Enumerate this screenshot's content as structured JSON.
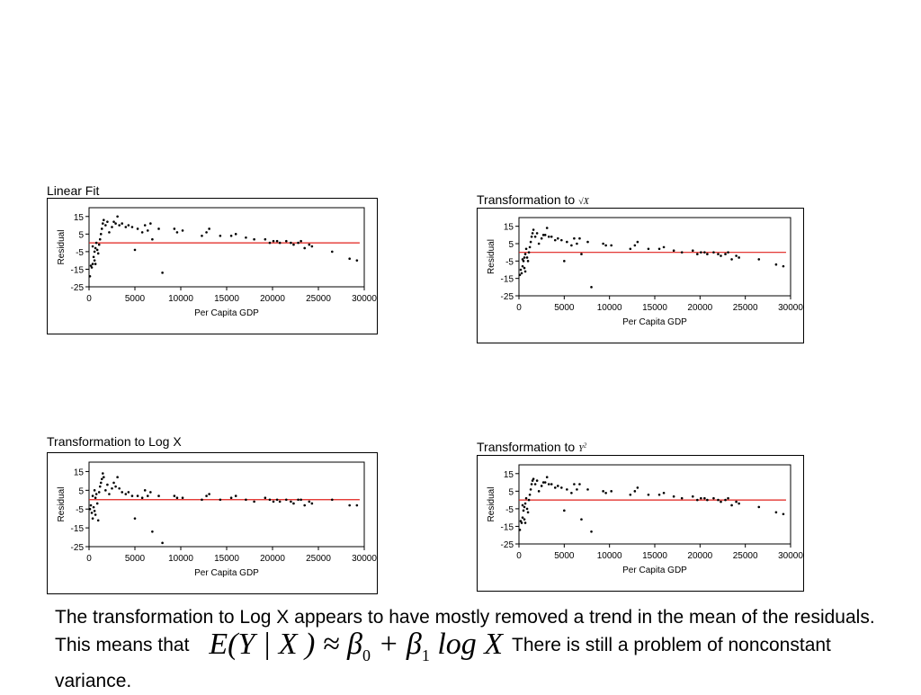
{
  "charts": [
    {
      "title": "Linear Fit",
      "symbol": "",
      "sup": ""
    },
    {
      "title": "Transformation to",
      "symbol": "√X",
      "sup": ""
    },
    {
      "title": "Transformation to Log X",
      "symbol": "",
      "sup": ""
    },
    {
      "title": "Transformation to",
      "symbol": "Y",
      "sup": "2"
    }
  ],
  "caption": {
    "text_before": "The transformation to Log X appears to have mostly removed a trend in the mean of the residuals.  This means that",
    "equation_lhs": "E(Y | X ) ≈ β",
    "eq_sub0": "0",
    "eq_mid": " + β",
    "eq_sub1": "1",
    "eq_rhs": " log X",
    "text_after": "There is still a problem of nonconstant variance."
  },
  "chart_data": [
    {
      "type": "scatter",
      "title": "Linear Fit",
      "xlabel": "Per Capita GDP",
      "ylabel": "Residual",
      "xlim": [
        0,
        30000
      ],
      "ylim": [
        -25,
        20
      ],
      "xticks": [
        0,
        5000,
        10000,
        15000,
        20000,
        25000,
        30000
      ],
      "yticks": [
        15,
        5,
        -5,
        -15,
        -25
      ],
      "reference_line": 0,
      "points": [
        [
          100,
          -19
        ],
        [
          200,
          -13
        ],
        [
          300,
          -14
        ],
        [
          400,
          -12
        ],
        [
          500,
          -8
        ],
        [
          600,
          -5
        ],
        [
          700,
          -3
        ],
        [
          800,
          0
        ],
        [
          400,
          -2
        ],
        [
          600,
          -10
        ],
        [
          700,
          -12
        ],
        [
          900,
          -4
        ],
        [
          1000,
          -6
        ],
        [
          1100,
          -1
        ],
        [
          1200,
          2
        ],
        [
          1300,
          5
        ],
        [
          1400,
          8
        ],
        [
          1500,
          11
        ],
        [
          1600,
          13
        ],
        [
          1800,
          10
        ],
        [
          2000,
          12
        ],
        [
          2200,
          6
        ],
        [
          2500,
          9
        ],
        [
          2700,
          12
        ],
        [
          2900,
          11
        ],
        [
          3100,
          15
        ],
        [
          3300,
          10
        ],
        [
          3600,
          11
        ],
        [
          4000,
          9
        ],
        [
          4300,
          10
        ],
        [
          4700,
          9
        ],
        [
          5000,
          -4
        ],
        [
          5300,
          8
        ],
        [
          5800,
          6
        ],
        [
          6100,
          10
        ],
        [
          6400,
          7
        ],
        [
          6700,
          11
        ],
        [
          6900,
          2
        ],
        [
          7600,
          8
        ],
        [
          8000,
          -17
        ],
        [
          9300,
          8
        ],
        [
          9600,
          6
        ],
        [
          10200,
          7
        ],
        [
          12300,
          4
        ],
        [
          12800,
          6
        ],
        [
          13100,
          8
        ],
        [
          14300,
          4
        ],
        [
          15500,
          4
        ],
        [
          16000,
          5
        ],
        [
          17100,
          3
        ],
        [
          18000,
          2
        ],
        [
          19200,
          2
        ],
        [
          19700,
          0
        ],
        [
          20100,
          1
        ],
        [
          20500,
          1
        ],
        [
          20800,
          0
        ],
        [
          21500,
          1
        ],
        [
          22000,
          0
        ],
        [
          22300,
          -1
        ],
        [
          22800,
          0
        ],
        [
          23100,
          1
        ],
        [
          23500,
          -3
        ],
        [
          24000,
          -1
        ],
        [
          24300,
          -2
        ],
        [
          26500,
          -5
        ],
        [
          28400,
          -9
        ],
        [
          29200,
          -10
        ]
      ]
    },
    {
      "type": "scatter",
      "title": "Transformation to √X",
      "xlabel": "Per Capita GDP",
      "ylabel": "Residual",
      "xlim": [
        0,
        30000
      ],
      "ylim": [
        -25,
        20
      ],
      "xticks": [
        0,
        5000,
        10000,
        15000,
        20000,
        25000,
        30000
      ],
      "yticks": [
        15,
        5,
        -5,
        -15,
        -25
      ],
      "reference_line": 0,
      "points": [
        [
          100,
          -13
        ],
        [
          200,
          -10
        ],
        [
          300,
          -12
        ],
        [
          400,
          -8
        ],
        [
          500,
          -5
        ],
        [
          600,
          -3
        ],
        [
          700,
          -1
        ],
        [
          800,
          2
        ],
        [
          400,
          -4
        ],
        [
          600,
          -9
        ],
        [
          700,
          -11
        ],
        [
          900,
          -3
        ],
        [
          1000,
          -5
        ],
        [
          1100,
          0
        ],
        [
          1200,
          3
        ],
        [
          1300,
          6
        ],
        [
          1400,
          9
        ],
        [
          1500,
          11
        ],
        [
          1600,
          13
        ],
        [
          1800,
          9
        ],
        [
          2000,
          11
        ],
        [
          2200,
          5
        ],
        [
          2500,
          8
        ],
        [
          2700,
          10
        ],
        [
          2900,
          10
        ],
        [
          3100,
          14
        ],
        [
          3300,
          9
        ],
        [
          3600,
          9
        ],
        [
          4000,
          7
        ],
        [
          4300,
          8
        ],
        [
          4700,
          7
        ],
        [
          5000,
          -5
        ],
        [
          5300,
          6
        ],
        [
          5800,
          4
        ],
        [
          6100,
          8
        ],
        [
          6400,
          5
        ],
        [
          6700,
          8
        ],
        [
          6900,
          -1
        ],
        [
          7600,
          6
        ],
        [
          8000,
          -20
        ],
        [
          9300,
          5
        ],
        [
          9600,
          4
        ],
        [
          10200,
          4
        ],
        [
          12300,
          2
        ],
        [
          12800,
          4
        ],
        [
          13100,
          6
        ],
        [
          14300,
          2
        ],
        [
          15500,
          2
        ],
        [
          16000,
          3
        ],
        [
          17100,
          1
        ],
        [
          18000,
          0
        ],
        [
          19200,
          1
        ],
        [
          19700,
          -1
        ],
        [
          20100,
          0
        ],
        [
          20500,
          0
        ],
        [
          20800,
          -1
        ],
        [
          21500,
          0
        ],
        [
          22000,
          -1
        ],
        [
          22300,
          -2
        ],
        [
          22800,
          -1
        ],
        [
          23100,
          0
        ],
        [
          23500,
          -4
        ],
        [
          24000,
          -2
        ],
        [
          24300,
          -3
        ],
        [
          26500,
          -4
        ],
        [
          28400,
          -7
        ],
        [
          29200,
          -8
        ]
      ]
    },
    {
      "type": "scatter",
      "title": "Transformation to Log X",
      "xlabel": "Per Capita GDP",
      "ylabel": "Residual",
      "xlim": [
        0,
        30000
      ],
      "ylim": [
        -25,
        20
      ],
      "xticks": [
        0,
        5000,
        10000,
        15000,
        20000,
        25000,
        30000
      ],
      "yticks": [
        15,
        5,
        -5,
        -15,
        -25
      ],
      "reference_line": 0,
      "points": [
        [
          100,
          -5
        ],
        [
          200,
          -3
        ],
        [
          300,
          -7
        ],
        [
          400,
          2
        ],
        [
          500,
          -4
        ],
        [
          600,
          5
        ],
        [
          700,
          -8
        ],
        [
          800,
          3
        ],
        [
          400,
          -10
        ],
        [
          600,
          -6
        ],
        [
          700,
          1
        ],
        [
          900,
          -2
        ],
        [
          1000,
          -11
        ],
        [
          1100,
          4
        ],
        [
          1200,
          7
        ],
        [
          1300,
          9
        ],
        [
          1400,
          11
        ],
        [
          1500,
          14
        ],
        [
          1600,
          12
        ],
        [
          1800,
          5
        ],
        [
          2000,
          8
        ],
        [
          2200,
          3
        ],
        [
          2500,
          6
        ],
        [
          2700,
          9
        ],
        [
          2900,
          7
        ],
        [
          3100,
          12
        ],
        [
          3300,
          6
        ],
        [
          3600,
          4
        ],
        [
          4000,
          3
        ],
        [
          4300,
          4
        ],
        [
          4700,
          2
        ],
        [
          5000,
          -10
        ],
        [
          5300,
          2
        ],
        [
          5800,
          1
        ],
        [
          6100,
          5
        ],
        [
          6400,
          2
        ],
        [
          6700,
          4
        ],
        [
          6900,
          -17
        ],
        [
          7600,
          2
        ],
        [
          8000,
          -23
        ],
        [
          9300,
          2
        ],
        [
          9600,
          1
        ],
        [
          10200,
          1
        ],
        [
          12300,
          0
        ],
        [
          12800,
          2
        ],
        [
          13100,
          3
        ],
        [
          14300,
          0
        ],
        [
          15500,
          1
        ],
        [
          16000,
          2
        ],
        [
          17100,
          0
        ],
        [
          18000,
          -1
        ],
        [
          19200,
          1
        ],
        [
          19700,
          0
        ],
        [
          20100,
          -1
        ],
        [
          20500,
          0
        ],
        [
          20800,
          -1
        ],
        [
          21500,
          0
        ],
        [
          22000,
          -1
        ],
        [
          22300,
          -2
        ],
        [
          22800,
          0
        ],
        [
          23100,
          0
        ],
        [
          23500,
          -3
        ],
        [
          24000,
          -1
        ],
        [
          24300,
          -2
        ],
        [
          26500,
          0
        ],
        [
          28400,
          -3
        ],
        [
          29200,
          -3
        ]
      ]
    },
    {
      "type": "scatter",
      "title": "Transformation to Y²",
      "xlabel": "Per Capita GDP",
      "ylabel": "Residual",
      "xlim": [
        0,
        30000
      ],
      "ylim": [
        -25,
        20
      ],
      "xticks": [
        0,
        5000,
        10000,
        15000,
        20000,
        25000,
        30000
      ],
      "yticks": [
        15,
        5,
        -5,
        -15,
        -25
      ],
      "reference_line": 0,
      "points": [
        [
          100,
          -17
        ],
        [
          200,
          -12
        ],
        [
          300,
          -13
        ],
        [
          400,
          -10
        ],
        [
          500,
          -6
        ],
        [
          600,
          -4
        ],
        [
          700,
          -2
        ],
        [
          800,
          1
        ],
        [
          400,
          -3
        ],
        [
          600,
          -11
        ],
        [
          700,
          -13
        ],
        [
          900,
          -5
        ],
        [
          1000,
          -7
        ],
        [
          1100,
          0
        ],
        [
          1200,
          3
        ],
        [
          1300,
          6
        ],
        [
          1400,
          9
        ],
        [
          1500,
          11
        ],
        [
          1600,
          12
        ],
        [
          1800,
          9
        ],
        [
          2000,
          11
        ],
        [
          2200,
          5
        ],
        [
          2500,
          8
        ],
        [
          2700,
          10
        ],
        [
          2900,
          10
        ],
        [
          3100,
          13
        ],
        [
          3300,
          9
        ],
        [
          3600,
          9
        ],
        [
          4000,
          7
        ],
        [
          4300,
          8
        ],
        [
          4700,
          7
        ],
        [
          5000,
          -6
        ],
        [
          5300,
          6
        ],
        [
          5800,
          4
        ],
        [
          6100,
          9
        ],
        [
          6400,
          6
        ],
        [
          6700,
          9
        ],
        [
          6900,
          -11
        ],
        [
          7600,
          6
        ],
        [
          8000,
          -18
        ],
        [
          9300,
          5
        ],
        [
          9600,
          4
        ],
        [
          10200,
          5
        ],
        [
          12300,
          3
        ],
        [
          12800,
          5
        ],
        [
          13100,
          7
        ],
        [
          14300,
          3
        ],
        [
          15500,
          3
        ],
        [
          16000,
          4
        ],
        [
          17100,
          2
        ],
        [
          18000,
          1
        ],
        [
          19200,
          2
        ],
        [
          19700,
          0
        ],
        [
          20100,
          1
        ],
        [
          20500,
          1
        ],
        [
          20800,
          0
        ],
        [
          21500,
          1
        ],
        [
          22000,
          0
        ],
        [
          22300,
          -1
        ],
        [
          22800,
          0
        ],
        [
          23100,
          1
        ],
        [
          23500,
          -3
        ],
        [
          24000,
          -1
        ],
        [
          24300,
          -2
        ],
        [
          26500,
          -4
        ],
        [
          28400,
          -7
        ],
        [
          29200,
          -8
        ]
      ]
    }
  ]
}
